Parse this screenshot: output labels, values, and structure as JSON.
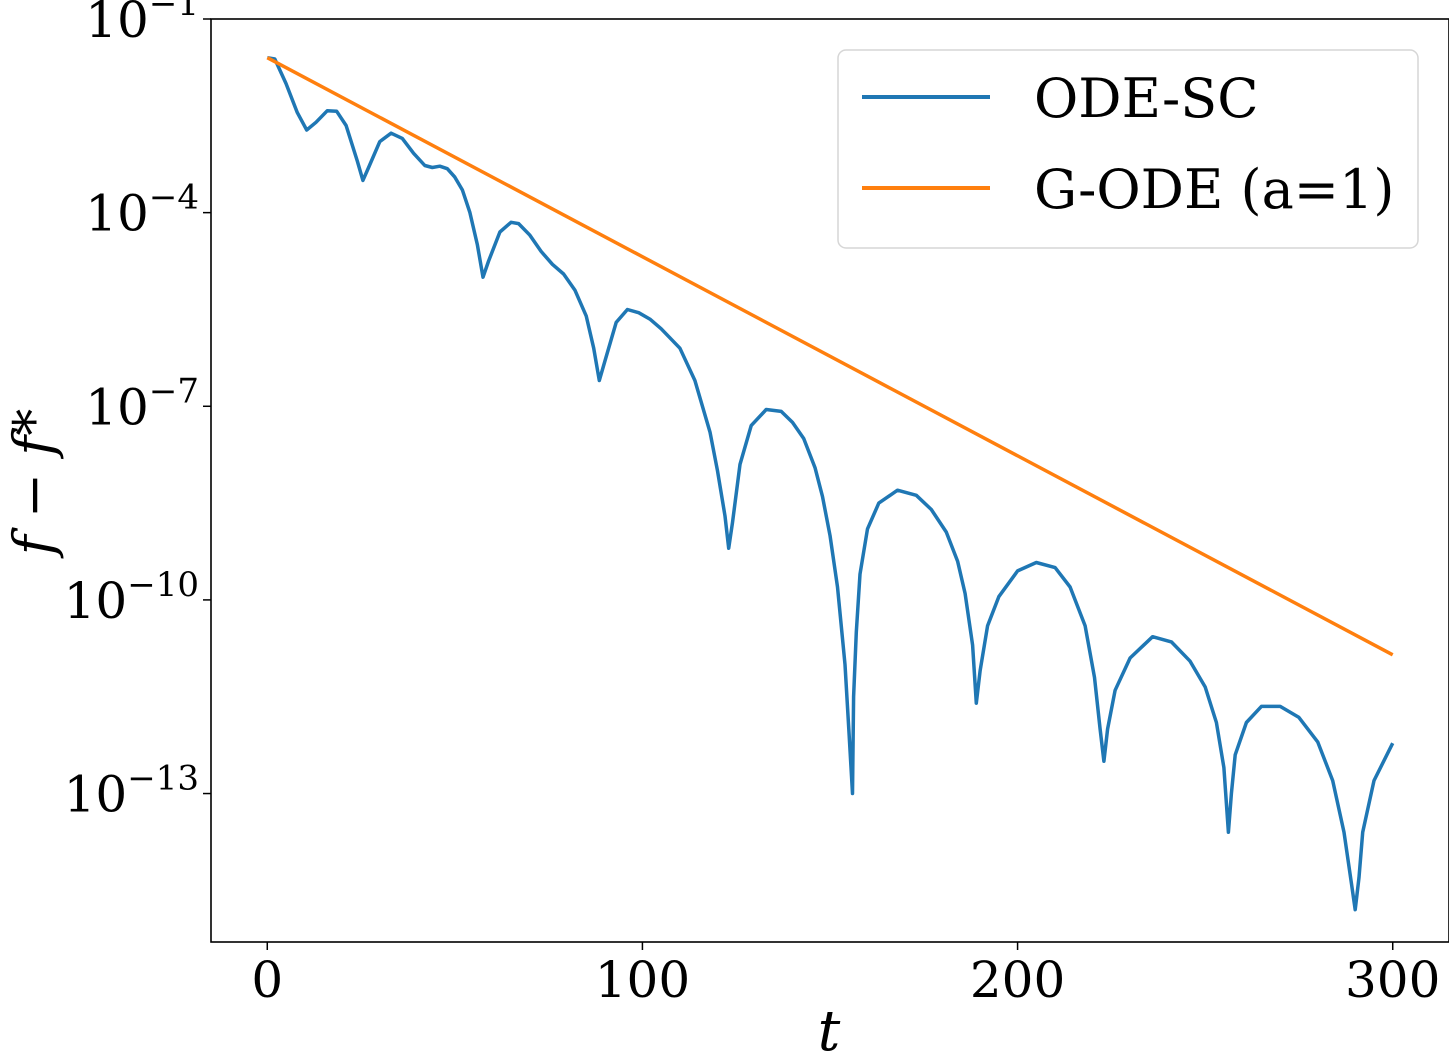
{
  "chart_data": {
    "type": "line",
    "title": "",
    "xlabel": "t",
    "ylabel": "f − f*",
    "yscale": "log",
    "xlim": [
      -15,
      315
    ],
    "ylim_exponent": [
      -15.3,
      -1
    ],
    "grid": false,
    "legend_position": "top-right",
    "x_ticks": [
      {
        "value": 0,
        "label": "0"
      },
      {
        "value": 100,
        "label": "100"
      },
      {
        "value": 200,
        "label": "200"
      },
      {
        "value": 300,
        "label": "300"
      }
    ],
    "y_ticks": [
      {
        "exponent": -1,
        "base": "10",
        "exp_label": "−1"
      },
      {
        "exponent": -4,
        "base": "10",
        "exp_label": "−4"
      },
      {
        "exponent": -7,
        "base": "10",
        "exp_label": "−7"
      },
      {
        "exponent": -10,
        "base": "10",
        "exp_label": "−10"
      },
      {
        "exponent": -13,
        "base": "10",
        "exp_label": "−13"
      }
    ],
    "series": [
      {
        "name": "ODE-SC",
        "color": "#1f77b4",
        "x": [
          0,
          2,
          5,
          8,
          10.5,
          13,
          16,
          18.5,
          21,
          24,
          25.5,
          27,
          30,
          33,
          36,
          39,
          42,
          44,
          46,
          48,
          50,
          52,
          54,
          56,
          57.5,
          59,
          62,
          65,
          67,
          70,
          73,
          76,
          79,
          82,
          85,
          87,
          88.5,
          90,
          93,
          96,
          99,
          102,
          105,
          110,
          114,
          118,
          120,
          122,
          123,
          124,
          126,
          129,
          133,
          137,
          140,
          143,
          146,
          148,
          150,
          152,
          154,
          155,
          156,
          156.3,
          157,
          158,
          160,
          163,
          168,
          173,
          177,
          181,
          184,
          186,
          188,
          189,
          190,
          192,
          195,
          200,
          205,
          210,
          214,
          218,
          220.5,
          222,
          223,
          224,
          226,
          230,
          236,
          241,
          246,
          250,
          253,
          255,
          256.2,
          257,
          258,
          261,
          265,
          270,
          275,
          280,
          284,
          287,
          289,
          290,
          291,
          292,
          295,
          300
        ],
        "y_exponent": [
          -1.6,
          -1.62,
          -2.0,
          -2.45,
          -2.72,
          -2.6,
          -2.42,
          -2.43,
          -2.65,
          -3.2,
          -3.5,
          -3.3,
          -2.9,
          -2.77,
          -2.85,
          -3.08,
          -3.27,
          -3.3,
          -3.28,
          -3.32,
          -3.45,
          -3.65,
          -4.0,
          -4.5,
          -5.0,
          -4.75,
          -4.3,
          -4.15,
          -4.17,
          -4.35,
          -4.6,
          -4.8,
          -4.95,
          -5.2,
          -5.6,
          -6.1,
          -6.6,
          -6.3,
          -5.7,
          -5.5,
          -5.55,
          -5.65,
          -5.8,
          -6.1,
          -6.6,
          -7.4,
          -8.0,
          -8.7,
          -9.2,
          -8.8,
          -7.9,
          -7.3,
          -7.05,
          -7.08,
          -7.25,
          -7.5,
          -7.95,
          -8.4,
          -9.0,
          -9.8,
          -11.0,
          -12.0,
          -13.0,
          -11.5,
          -10.5,
          -9.6,
          -8.9,
          -8.5,
          -8.3,
          -8.38,
          -8.6,
          -8.95,
          -9.4,
          -9.9,
          -10.7,
          -11.6,
          -11.1,
          -10.4,
          -9.95,
          -9.55,
          -9.42,
          -9.5,
          -9.8,
          -10.4,
          -11.2,
          -12.0,
          -12.5,
          -12.0,
          -11.4,
          -10.9,
          -10.57,
          -10.65,
          -10.95,
          -11.35,
          -11.9,
          -12.6,
          -13.6,
          -13.0,
          -12.4,
          -11.9,
          -11.65,
          -11.65,
          -11.82,
          -12.2,
          -12.8,
          -13.6,
          -14.4,
          -14.8,
          -14.3,
          -13.6,
          -12.8,
          -12.22
        ]
      },
      {
        "name": "G-ODE (a=1)",
        "color": "#ff7f0e",
        "x": [
          0,
          300
        ],
        "y_exponent": [
          -1.6,
          -10.85
        ]
      }
    ]
  }
}
